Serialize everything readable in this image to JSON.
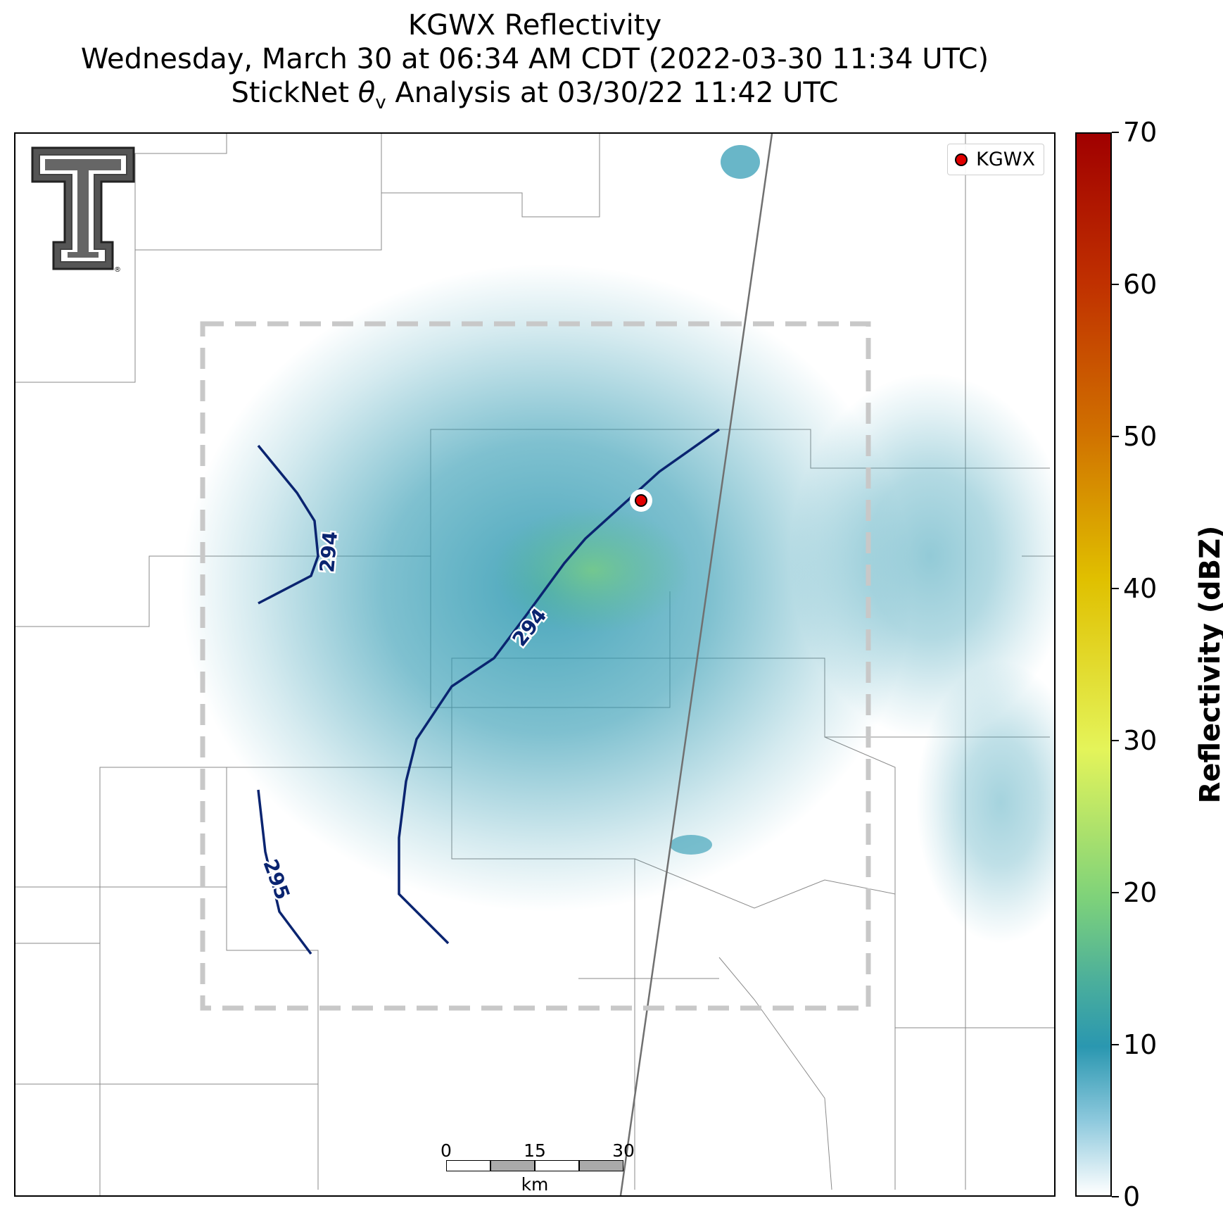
{
  "title": {
    "line1": "KGWX Reflectivity",
    "line2": "Wednesday, March 30 at 06:34 AM CDT (2022-03-30 11:34 UTC)",
    "line3_prefix": "StickNet ",
    "line3_symbol": "θ",
    "line3_sub": "v",
    "line3_suffix": " Analysis at 03/30/22 11:42 UTC"
  },
  "legend": {
    "label": "KGWX",
    "marker_color": "#e00000"
  },
  "radar_site": {
    "name": "KGWX"
  },
  "contours": [
    {
      "label": "294",
      "color": "#0a2470"
    },
    {
      "label": "294",
      "color": "#0a2470"
    },
    {
      "label": "295",
      "color": "#0a2470"
    }
  ],
  "colorbar": {
    "title": "Reflectivity (dBZ)",
    "ticks": [
      "70",
      "60",
      "50",
      "40",
      "30",
      "20",
      "10",
      "0"
    ],
    "range": [
      0,
      70
    ],
    "colors": [
      "#ffffff",
      "#2a97b0",
      "#5cc08a",
      "#e8f040",
      "#e0b000",
      "#d86000",
      "#a80000"
    ]
  },
  "scalebar": {
    "ticks": [
      "0",
      "15",
      "30"
    ],
    "unit": "km"
  },
  "analysis_box": {
    "style": "dashed",
    "color": "#cccccc"
  },
  "logo": {
    "name": "texas-tech-double-t-logo"
  }
}
